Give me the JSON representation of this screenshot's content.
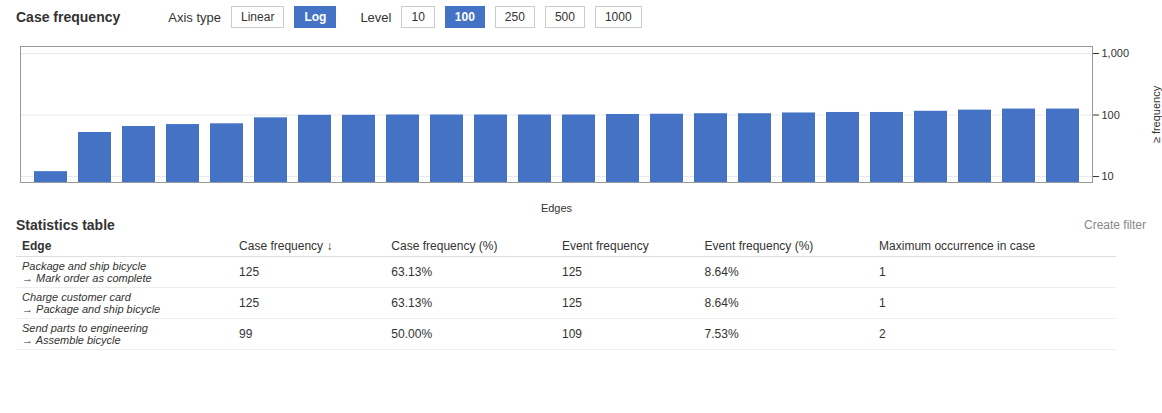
{
  "chart_data": {
    "type": "bar",
    "title": "Case frequency",
    "categories": [
      null,
      null,
      null,
      null,
      null,
      null,
      null,
      null,
      null,
      null,
      null,
      null,
      null,
      null,
      null,
      null,
      null,
      null,
      null,
      null,
      null,
      null,
      null,
      null
    ],
    "values": [
      12,
      52,
      65,
      70,
      72,
      90,
      99,
      99,
      100,
      100,
      100,
      100,
      100,
      102,
      103,
      105,
      105,
      108,
      110,
      110,
      115,
      120,
      125,
      125
    ],
    "color": "#4472C4",
    "xlabel": "Edges",
    "ylabel": "≥ frequency",
    "log": "y",
    "ylim": [
      8,
      1300
    ],
    "yticks": [
      10,
      100,
      {
        "value": 1000,
        "label": "1,000"
      }
    ],
    "grid": true,
    "tick_labels": "y",
    "controls": [
      {
        "label": "Axis type",
        "options": [
          "Linear",
          "Log"
        ],
        "selected": "Log"
      },
      {
        "label": "Level",
        "options": [
          "10",
          "100",
          "250",
          "500",
          "1000"
        ],
        "selected": "100"
      }
    ],
    "table": {
      "title": "Statistics table",
      "action": "Create filter",
      "headers": [
        "Edge",
        "Case frequency ↓",
        "Case frequency (%)",
        "Event frequency",
        "Event frequency (%)",
        "Maximum occurrence in case"
      ],
      "rows": [
        [
          "Package and ship bicycle\n→ Mark order as complete",
          "125",
          "63.13%",
          "125",
          "8.64%",
          "1"
        ],
        [
          "Charge customer card\n→ Package and ship bicycle",
          "125",
          "63.13%",
          "125",
          "8.64%",
          "1"
        ],
        [
          "Send parts to engineering\n→ Assemble bicycle",
          "99",
          "50.00%",
          "109",
          "7.53%",
          "2"
        ]
      ]
    }
  }
}
